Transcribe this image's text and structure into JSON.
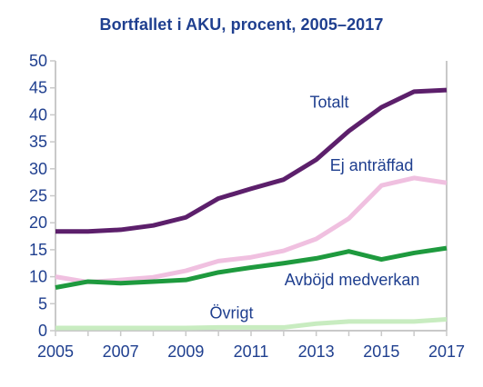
{
  "chart_data": {
    "type": "line",
    "title": "Bortfallet i AKU, procent, 2005–2017",
    "xlabel": "",
    "ylabel": "",
    "x": [
      2005,
      2006,
      2007,
      2008,
      2009,
      2010,
      2011,
      2012,
      2013,
      2014,
      2015,
      2016,
      2017
    ],
    "xticks": [
      "2005",
      "2007",
      "2009",
      "2011",
      "2013",
      "2015",
      "2017"
    ],
    "xlim": [
      2005,
      2017
    ],
    "ylim": [
      0,
      50
    ],
    "yticks": [
      "0",
      "5",
      "10",
      "15",
      "20",
      "25",
      "30",
      "35",
      "40",
      "45",
      "50"
    ],
    "grid": false,
    "legend": "none",
    "series": [
      {
        "name": "Totalt",
        "color": "#5c1f6b",
        "values": [
          18.4,
          18.4,
          18.7,
          19.5,
          21.0,
          24.5,
          26.3,
          28.0,
          31.7,
          37.0,
          41.4,
          44.3,
          44.6
        ]
      },
      {
        "name": "Ej anträffad",
        "color": "#f0c0e0",
        "values": [
          10.0,
          9.0,
          9.4,
          9.9,
          11.1,
          12.9,
          13.6,
          14.8,
          17.0,
          20.8,
          26.9,
          28.3,
          27.4
        ]
      },
      {
        "name": "Avböjd medverkan",
        "color": "#1e9a3e",
        "values": [
          8.0,
          9.1,
          8.8,
          9.1,
          9.4,
          10.8,
          11.7,
          12.5,
          13.4,
          14.7,
          13.2,
          14.4,
          15.3
        ]
      },
      {
        "name": "Övrigt",
        "color": "#c8ecc0",
        "values": [
          0.5,
          0.5,
          0.5,
          0.5,
          0.5,
          0.6,
          0.6,
          0.6,
          1.3,
          1.7,
          1.7,
          1.7,
          2.1
        ]
      }
    ]
  }
}
